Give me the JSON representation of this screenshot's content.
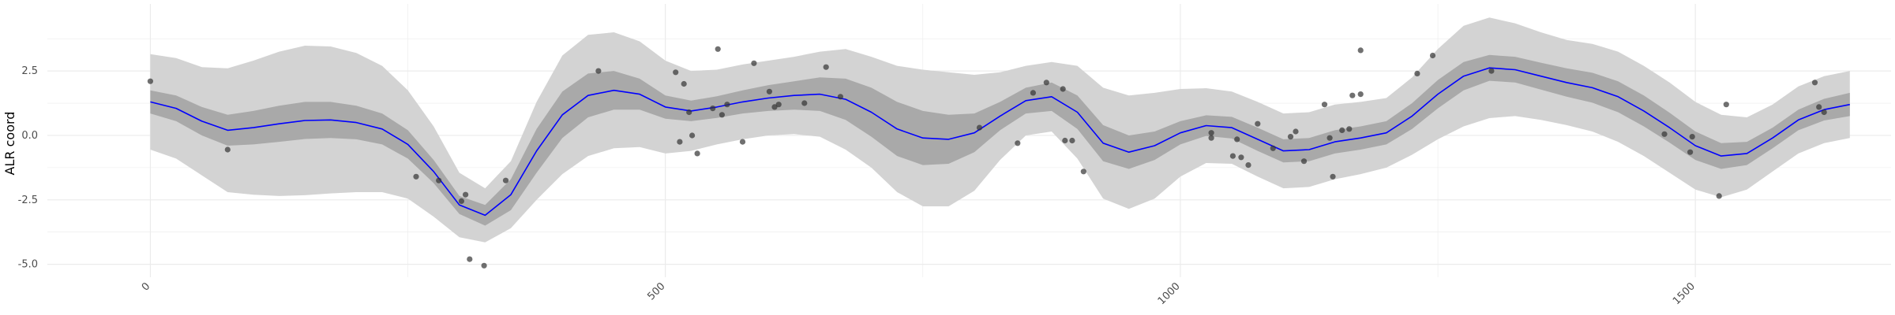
{
  "chart_data": {
    "type": "line",
    "title": "",
    "xlabel": "",
    "ylabel": "ALR coord",
    "xlim": [
      -100,
      1690
    ],
    "ylim": [
      -5.5,
      5.1
    ],
    "x_ticks": [
      0,
      500,
      1000,
      1500
    ],
    "x_tick_labels": [
      "0",
      "500",
      "1000",
      "1500"
    ],
    "y_ticks": [
      -5.0,
      -2.5,
      0.0,
      2.5
    ],
    "y_tick_labels": [
      "-5.0",
      "-2.5",
      "0.0",
      "2.5"
    ],
    "grid": true,
    "legend": "none",
    "colors": {
      "mean_line": "#0000ff",
      "inner_band": "#a9a9a9",
      "outer_band": "#d3d3d3",
      "points": "#333333",
      "grid": "#ebebeb"
    },
    "series": [
      {
        "type": "line",
        "x": [
          0,
          25,
          50,
          75,
          100,
          125,
          150,
          175,
          200,
          225,
          250,
          275,
          300,
          325,
          350,
          375,
          400,
          425,
          450,
          475,
          500,
          525,
          550,
          575,
          600,
          625,
          650,
          675,
          700,
          725,
          750,
          775,
          800,
          825,
          850,
          875,
          900,
          925,
          950,
          975,
          1000,
          1025,
          1050,
          1075,
          1100,
          1125,
          1150,
          1175,
          1200,
          1225,
          1250,
          1275,
          1300,
          1325,
          1350,
          1375,
          1400,
          1425,
          1450,
          1475,
          1500,
          1525,
          1550,
          1575,
          1600,
          1625,
          1650
        ],
        "y": [
          1.3,
          1.05,
          0.55,
          0.2,
          0.3,
          0.45,
          0.58,
          0.6,
          0.5,
          0.25,
          -0.35,
          -1.4,
          -2.7,
          -3.1,
          -2.3,
          -0.6,
          0.8,
          1.55,
          1.75,
          1.6,
          1.1,
          0.95,
          1.1,
          1.3,
          1.45,
          1.55,
          1.6,
          1.4,
          0.9,
          0.25,
          -0.1,
          -0.15,
          0.1,
          0.75,
          1.35,
          1.5,
          0.9,
          -0.3,
          -0.65,
          -0.4,
          0.1,
          0.38,
          0.3,
          -0.15,
          -0.6,
          -0.55,
          -0.25,
          -0.1,
          0.1,
          0.75,
          1.6,
          2.3,
          2.62,
          2.55,
          2.3,
          2.05,
          1.85,
          1.5,
          0.95,
          0.3,
          -0.4,
          -0.8,
          -0.7,
          -0.1,
          0.6,
          1.0,
          1.2
        ],
        "inner_half_width": [
          0.45,
          0.5,
          0.55,
          0.6,
          0.65,
          0.7,
          0.72,
          0.7,
          0.65,
          0.6,
          0.55,
          0.45,
          0.35,
          0.4,
          0.6,
          0.85,
          0.9,
          0.85,
          0.75,
          0.6,
          0.45,
          0.4,
          0.42,
          0.45,
          0.5,
          0.55,
          0.65,
          0.8,
          0.95,
          1.05,
          1.05,
          0.95,
          0.75,
          0.55,
          0.5,
          0.55,
          0.65,
          0.7,
          0.65,
          0.55,
          0.45,
          0.4,
          0.42,
          0.45,
          0.45,
          0.45,
          0.45,
          0.45,
          0.45,
          0.5,
          0.55,
          0.55,
          0.5,
          0.5,
          0.52,
          0.55,
          0.58,
          0.6,
          0.6,
          0.58,
          0.55,
          0.5,
          0.45,
          0.4,
          0.4,
          0.42,
          0.45
        ],
        "outer_half_width": [
          1.85,
          1.95,
          2.1,
          2.4,
          2.6,
          2.8,
          2.9,
          2.85,
          2.7,
          2.45,
          2.1,
          1.75,
          1.25,
          1.05,
          1.3,
          1.9,
          2.3,
          2.35,
          2.25,
          2.05,
          1.8,
          1.55,
          1.45,
          1.45,
          1.45,
          1.5,
          1.65,
          1.95,
          2.15,
          2.45,
          2.65,
          2.6,
          2.25,
          1.7,
          1.35,
          1.35,
          1.8,
          2.15,
          2.2,
          2.05,
          1.7,
          1.45,
          1.4,
          1.45,
          1.45,
          1.45,
          1.45,
          1.4,
          1.35,
          1.5,
          1.75,
          1.95,
          1.95,
          1.8,
          1.7,
          1.65,
          1.7,
          1.75,
          1.75,
          1.75,
          1.7,
          1.6,
          1.4,
          1.3,
          1.3,
          1.3,
          1.3
        ]
      },
      {
        "type": "scatter",
        "x": [
          0,
          75,
          258,
          280,
          302,
          306,
          310,
          324,
          345,
          435,
          510,
          514,
          518,
          523,
          526,
          531,
          546,
          551,
          555,
          560,
          575,
          586,
          601,
          606,
          610,
          635,
          656,
          670,
          805,
          842,
          857,
          870,
          886,
          888,
          895,
          906,
          1030,
          1030,
          1051,
          1055,
          1059,
          1066,
          1075,
          1090,
          1107,
          1112,
          1120,
          1140,
          1145,
          1148,
          1157,
          1164,
          1167,
          1175,
          1175,
          1230,
          1245,
          1302,
          1470,
          1495,
          1497,
          1523,
          1530,
          1616,
          1620,
          1625
        ],
        "y": [
          2.1,
          -0.55,
          -1.6,
          -1.75,
          -2.55,
          -2.3,
          -4.8,
          -5.05,
          -1.75,
          2.5,
          2.45,
          -0.25,
          2.0,
          0.9,
          0.0,
          -0.7,
          1.05,
          3.35,
          0.8,
          1.2,
          -0.25,
          2.8,
          1.7,
          1.1,
          1.2,
          1.25,
          2.65,
          1.5,
          0.3,
          -0.3,
          1.65,
          2.05,
          1.8,
          -0.2,
          -0.2,
          -1.4,
          0.1,
          -0.1,
          -0.8,
          -0.15,
          -0.85,
          -1.15,
          0.45,
          -0.5,
          -0.05,
          0.15,
          -1.0,
          1.2,
          -0.1,
          -1.6,
          0.2,
          0.25,
          1.55,
          1.6,
          3.3,
          2.4,
          3.1,
          2.5,
          0.05,
          -0.65,
          -0.05,
          -2.35,
          1.2,
          2.05,
          1.1,
          0.9
        ]
      }
    ]
  }
}
